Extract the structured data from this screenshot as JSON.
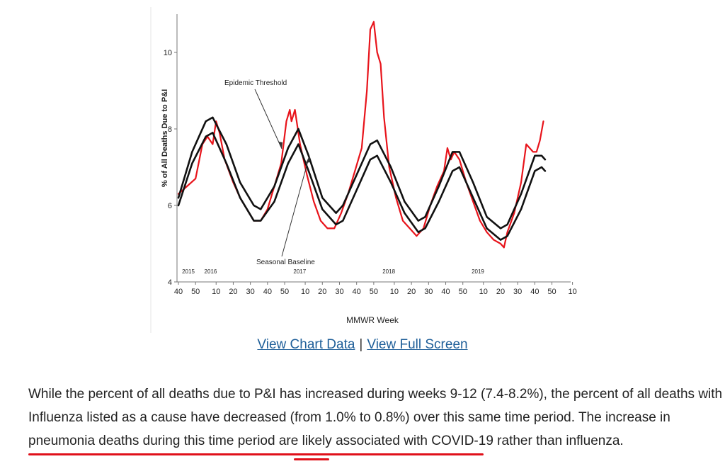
{
  "chart_data": {
    "type": "line",
    "xlabel": "MMWR Week",
    "ylabel": "% of All Deaths Due to P&I",
    "ylim": [
      4,
      11
    ],
    "y_ticks": [
      4,
      6,
      8,
      10
    ],
    "x_tick_labels": [
      "40",
      "50",
      "10",
      "20",
      "30",
      "40",
      "50",
      "10",
      "20",
      "30",
      "40",
      "50",
      "10",
      "20",
      "30",
      "40",
      "50",
      "10",
      "20",
      "30",
      "40",
      "50",
      "10"
    ],
    "year_labels": [
      "2015",
      "2016",
      "2017",
      "2018",
      "2019"
    ],
    "annotations": [
      "Epidemic Threshold",
      "Seasonal Baseline"
    ],
    "series": [
      {
        "color": "#e8141b",
        "values": [
          [
            40,
            6.3
          ],
          [
            45,
            6.5
          ],
          [
            50,
            6.7
          ],
          [
            54,
            7.6
          ],
          [
            57,
            7.8
          ],
          [
            60,
            7.6
          ],
          [
            62,
            8.2
          ],
          [
            64,
            7.9
          ],
          [
            67,
            7.2
          ],
          [
            72,
            6.6
          ],
          [
            76,
            6.2
          ],
          [
            80,
            5.9
          ],
          [
            84,
            5.6
          ],
          [
            88,
            5.6
          ],
          [
            92,
            5.9
          ],
          [
            96,
            6.5
          ],
          [
            100,
            7.1
          ],
          [
            103,
            8.2
          ],
          [
            105,
            8.5
          ],
          [
            106,
            8.2
          ],
          [
            108,
            8.5
          ],
          [
            111,
            7.6
          ],
          [
            115,
            6.8
          ],
          [
            119,
            6.1
          ],
          [
            123,
            5.6
          ],
          [
            127,
            5.4
          ],
          [
            131,
            5.4
          ],
          [
            135,
            5.8
          ],
          [
            139,
            6.3
          ],
          [
            143,
            6.9
          ],
          [
            147,
            7.5
          ],
          [
            150,
            9.0
          ],
          [
            152,
            10.6
          ],
          [
            154,
            10.8
          ],
          [
            156,
            10.0
          ],
          [
            158,
            9.7
          ],
          [
            160,
            8.3
          ],
          [
            163,
            7.0
          ],
          [
            167,
            6.2
          ],
          [
            171,
            5.6
          ],
          [
            175,
            5.4
          ],
          [
            179,
            5.2
          ],
          [
            183,
            5.4
          ],
          [
            187,
            6.0
          ],
          [
            191,
            6.5
          ],
          [
            195,
            6.9
          ],
          [
            197,
            7.5
          ],
          [
            199,
            7.2
          ],
          [
            201,
            7.4
          ],
          [
            204,
            7.2
          ],
          [
            208,
            6.6
          ],
          [
            212,
            6.1
          ],
          [
            216,
            5.6
          ],
          [
            220,
            5.3
          ],
          [
            224,
            5.1
          ],
          [
            228,
            5.0
          ],
          [
            230,
            4.9
          ],
          [
            232,
            5.3
          ],
          [
            236,
            5.8
          ],
          [
            240,
            6.6
          ],
          [
            243,
            7.6
          ],
          [
            245,
            7.5
          ],
          [
            247,
            7.4
          ],
          [
            249,
            7.4
          ],
          [
            251,
            7.7
          ],
          [
            253,
            8.2
          ]
        ]
      },
      {
        "name": "Epidemic Threshold",
        "color": "#111111",
        "values": [
          [
            40,
            6.2
          ],
          [
            48,
            7.4
          ],
          [
            56,
            8.2
          ],
          [
            60,
            8.3
          ],
          [
            68,
            7.6
          ],
          [
            76,
            6.6
          ],
          [
            84,
            6.0
          ],
          [
            88,
            5.9
          ],
          [
            96,
            6.5
          ],
          [
            104,
            7.5
          ],
          [
            110,
            8.0
          ],
          [
            116,
            7.3
          ],
          [
            124,
            6.2
          ],
          [
            132,
            5.8
          ],
          [
            136,
            6.0
          ],
          [
            144,
            6.8
          ],
          [
            152,
            7.6
          ],
          [
            156,
            7.7
          ],
          [
            164,
            7.0
          ],
          [
            172,
            6.1
          ],
          [
            180,
            5.6
          ],
          [
            184,
            5.7
          ],
          [
            192,
            6.5
          ],
          [
            200,
            7.4
          ],
          [
            204,
            7.4
          ],
          [
            212,
            6.6
          ],
          [
            220,
            5.7
          ],
          [
            228,
            5.4
          ],
          [
            232,
            5.5
          ],
          [
            240,
            6.3
          ],
          [
            248,
            7.3
          ],
          [
            252,
            7.3
          ],
          [
            254,
            7.2
          ]
        ]
      },
      {
        "name": "Seasonal Baseline",
        "color": "#111111",
        "values": [
          [
            40,
            6.0
          ],
          [
            48,
            7.1
          ],
          [
            56,
            7.8
          ],
          [
            60,
            7.9
          ],
          [
            68,
            7.1
          ],
          [
            76,
            6.2
          ],
          [
            84,
            5.6
          ],
          [
            88,
            5.6
          ],
          [
            96,
            6.1
          ],
          [
            104,
            7.1
          ],
          [
            110,
            7.6
          ],
          [
            116,
            6.9
          ],
          [
            124,
            5.9
          ],
          [
            132,
            5.5
          ],
          [
            136,
            5.6
          ],
          [
            144,
            6.4
          ],
          [
            152,
            7.2
          ],
          [
            156,
            7.3
          ],
          [
            164,
            6.6
          ],
          [
            172,
            5.8
          ],
          [
            180,
            5.3
          ],
          [
            184,
            5.4
          ],
          [
            192,
            6.1
          ],
          [
            200,
            6.9
          ],
          [
            204,
            7.0
          ],
          [
            212,
            6.2
          ],
          [
            220,
            5.4
          ],
          [
            228,
            5.1
          ],
          [
            232,
            5.2
          ],
          [
            240,
            5.9
          ],
          [
            248,
            6.9
          ],
          [
            252,
            7.0
          ],
          [
            254,
            6.9
          ]
        ]
      }
    ]
  },
  "links": {
    "view_chart_data": "View Chart Data",
    "separator": "|",
    "view_full_screen": "View Full Screen"
  },
  "paragraph": {
    "line1": "While the percent of all deaths due to P&I has increased during weeks 9-12 (7.4-8.2%), the percent of all deaths with",
    "line2": "Influenza listed as a cause have decreased (from 1.0% to 0.8%) over this same time period. The increase in",
    "line3a": "pneumonia deaths during this time period are likely associated with COVID-19",
    "line3b": " rather than influenza."
  },
  "colors": {
    "red_series": "#e8141b",
    "link": "#1f5f99",
    "underline": "#e0101a"
  }
}
